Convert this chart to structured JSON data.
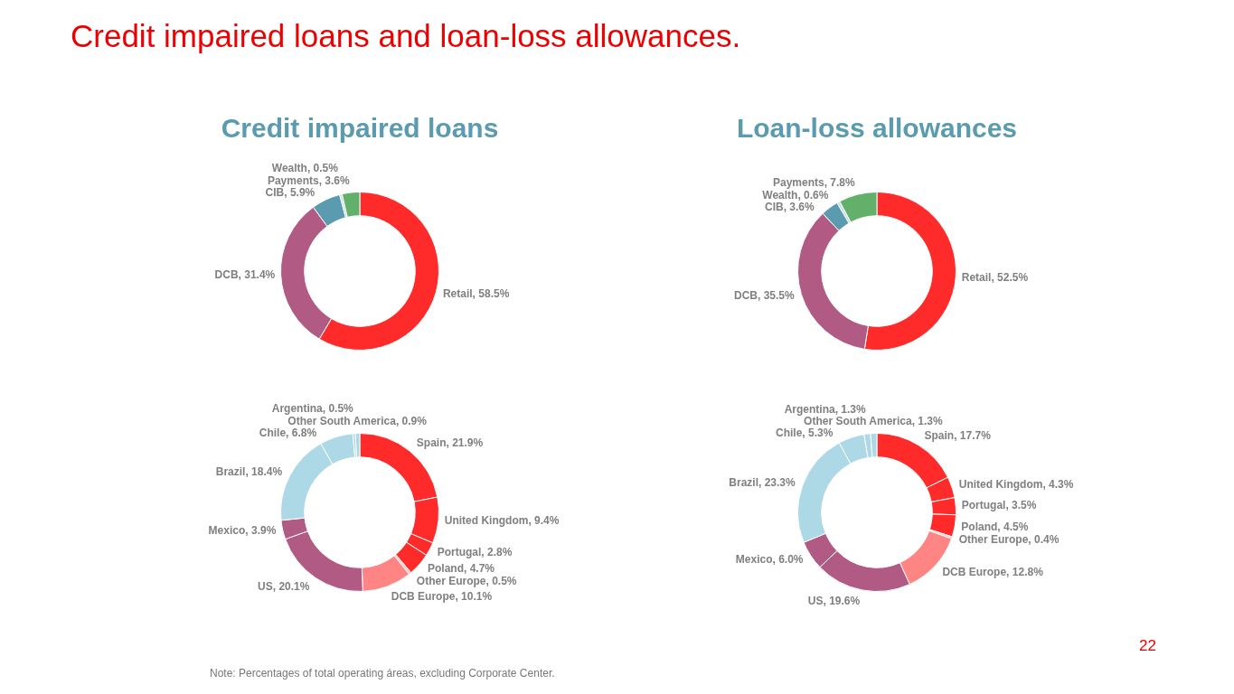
{
  "chart_data": [
    {
      "type": "donut",
      "title": "Credit impaired loans",
      "categories": [
        "Retail",
        "DCB",
        "CIB",
        "Wealth",
        "Payments"
      ],
      "values": [
        58.5,
        31.4,
        5.9,
        0.5,
        3.6
      ],
      "value_labels": [
        "58.5%",
        "31.4%",
        "5.9%",
        "0.5%",
        "3.6%"
      ],
      "colors": [
        "#ff2a2a",
        "#b05a84",
        "#5a9bb0",
        "#c9dfe8",
        "#63b06a"
      ],
      "annotations": [
        "Credit impaired loans and loan-loss allowances.",
        "Note: Percentages of total operating áreas, excluding Corporate Center.",
        "22"
      ]
    },
    {
      "type": "donut",
      "title": "Loan-loss allowances",
      "categories": [
        "Retail",
        "DCB",
        "CIB",
        "Wealth",
        "Payments"
      ],
      "values": [
        52.5,
        35.5,
        3.6,
        0.6,
        7.8
      ],
      "value_labels": [
        "52.5%",
        "35.5%",
        "3.6%",
        "0.6%",
        "7.8%"
      ],
      "colors": [
        "#ff2a2a",
        "#b05a84",
        "#5a9bb0",
        "#c9dfe8",
        "#63b06a"
      ]
    },
    {
      "type": "donut",
      "categories": [
        "Spain",
        "United Kingdom",
        "Portugal",
        "Poland",
        "Other Europe",
        "DCB Europe",
        "US",
        "Mexico",
        "Brazil",
        "Chile",
        "Argentina",
        "Other South America"
      ],
      "values": [
        21.9,
        9.4,
        2.8,
        4.7,
        0.5,
        10.1,
        20.1,
        3.9,
        18.4,
        6.8,
        0.5,
        0.9
      ],
      "value_labels": [
        "21.9%",
        "9.4%",
        "2.8%",
        "4.7%",
        "0.5%",
        "10.1%",
        "20.1%",
        "3.9%",
        "18.4%",
        "6.8%",
        "0.5%",
        "0.9%"
      ],
      "colors": [
        "#ff2a2a",
        "#ff2a2a",
        "#ff2a2a",
        "#ff2a2a",
        "#ffc4c4",
        "#ff8585",
        "#b05a84",
        "#b05a84",
        "#add8e6",
        "#add8e6",
        "#add8e6",
        "#add8e6"
      ]
    },
    {
      "type": "donut",
      "categories": [
        "Spain",
        "United Kingdom",
        "Portugal",
        "Poland",
        "Other Europe",
        "DCB Europe",
        "US",
        "Mexico",
        "Brazil",
        "Chile",
        "Argentina",
        "Other South America"
      ],
      "values": [
        17.7,
        4.3,
        3.5,
        4.5,
        0.4,
        12.8,
        19.6,
        6.0,
        23.3,
        5.3,
        1.3,
        1.3
      ],
      "value_labels": [
        "17.7%",
        "4.3%",
        "3.5%",
        "4.5%",
        "0.4%",
        "12.8%",
        "19.6%",
        "6.0%",
        "23.3%",
        "5.3%",
        "1.3%",
        "1.3%"
      ],
      "colors": [
        "#ff2a2a",
        "#ff2a2a",
        "#ff2a2a",
        "#ff2a2a",
        "#ffc4c4",
        "#ff8585",
        "#b05a84",
        "#b05a84",
        "#add8e6",
        "#add8e6",
        "#add8e6",
        "#add8e6"
      ]
    }
  ]
}
